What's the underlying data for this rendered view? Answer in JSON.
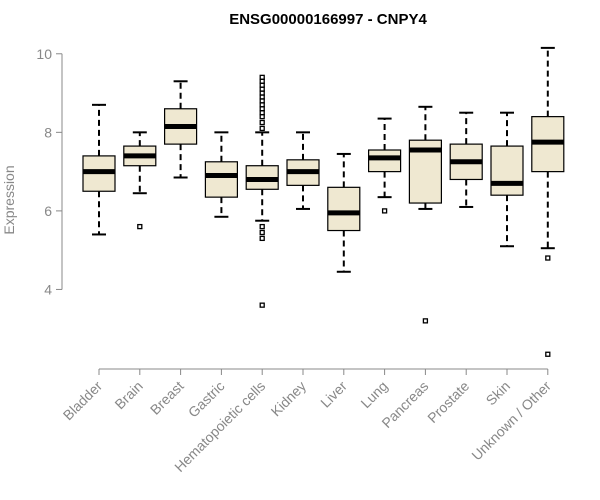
{
  "chart_data": {
    "type": "boxplot",
    "title": "ENSG00000166997 - CNPY4",
    "ylabel": "Expression",
    "xlabel": "",
    "ylim": [
      2.0,
      10.3
    ],
    "yticks": [
      4,
      6,
      8,
      10
    ],
    "box_fill": "#efe8d1",
    "categories": [
      "Bladder",
      "Brain",
      "Breast",
      "Gastric",
      "Hematopoietic cells",
      "Kidney",
      "Liver",
      "Lung",
      "Pancreas",
      "Prostate",
      "Skin",
      "Unknown / Other"
    ],
    "series": [
      {
        "name": "Bladder",
        "min": 5.4,
        "q1": 6.5,
        "median": 7.0,
        "q3": 7.4,
        "max": 8.7,
        "outliers": []
      },
      {
        "name": "Brain",
        "min": 6.45,
        "q1": 7.15,
        "median": 7.4,
        "q3": 7.65,
        "max": 8.0,
        "outliers": [
          5.6
        ]
      },
      {
        "name": "Breast",
        "min": 6.85,
        "q1": 7.7,
        "median": 8.15,
        "q3": 8.6,
        "max": 9.3,
        "outliers": []
      },
      {
        "name": "Gastric",
        "min": 5.85,
        "q1": 6.35,
        "median": 6.9,
        "q3": 7.25,
        "max": 8.0,
        "outliers": []
      },
      {
        "name": "Hematopoietic cells",
        "min": 5.75,
        "q1": 6.55,
        "median": 6.8,
        "q3": 7.15,
        "max": 8.0,
        "outliers": [
          3.6,
          5.3,
          5.45,
          5.6,
          8.1,
          8.25,
          8.4,
          8.5,
          8.6,
          8.7,
          8.8,
          8.9,
          9.0,
          9.1,
          9.2,
          9.3,
          9.4
        ]
      },
      {
        "name": "Kidney",
        "min": 6.05,
        "q1": 6.65,
        "median": 7.0,
        "q3": 7.3,
        "max": 8.0,
        "outliers": []
      },
      {
        "name": "Liver",
        "min": 4.45,
        "q1": 5.5,
        "median": 5.95,
        "q3": 6.6,
        "max": 7.45,
        "outliers": []
      },
      {
        "name": "Lung",
        "min": 6.35,
        "q1": 7.0,
        "median": 7.35,
        "q3": 7.55,
        "max": 8.35,
        "outliers": [
          6.0
        ]
      },
      {
        "name": "Pancreas",
        "min": 6.05,
        "q1": 6.2,
        "median": 7.55,
        "q3": 7.8,
        "max": 8.65,
        "outliers": [
          3.2
        ]
      },
      {
        "name": "Prostate",
        "min": 6.1,
        "q1": 6.8,
        "median": 7.25,
        "q3": 7.7,
        "max": 8.5,
        "outliers": []
      },
      {
        "name": "Skin",
        "min": 5.1,
        "q1": 6.4,
        "median": 6.7,
        "q3": 7.65,
        "max": 8.5,
        "outliers": []
      },
      {
        "name": "Unknown / Other",
        "min": 5.05,
        "q1": 7.0,
        "median": 7.75,
        "q3": 8.4,
        "max": 10.15,
        "outliers": [
          4.8,
          2.35
        ]
      }
    ]
  }
}
